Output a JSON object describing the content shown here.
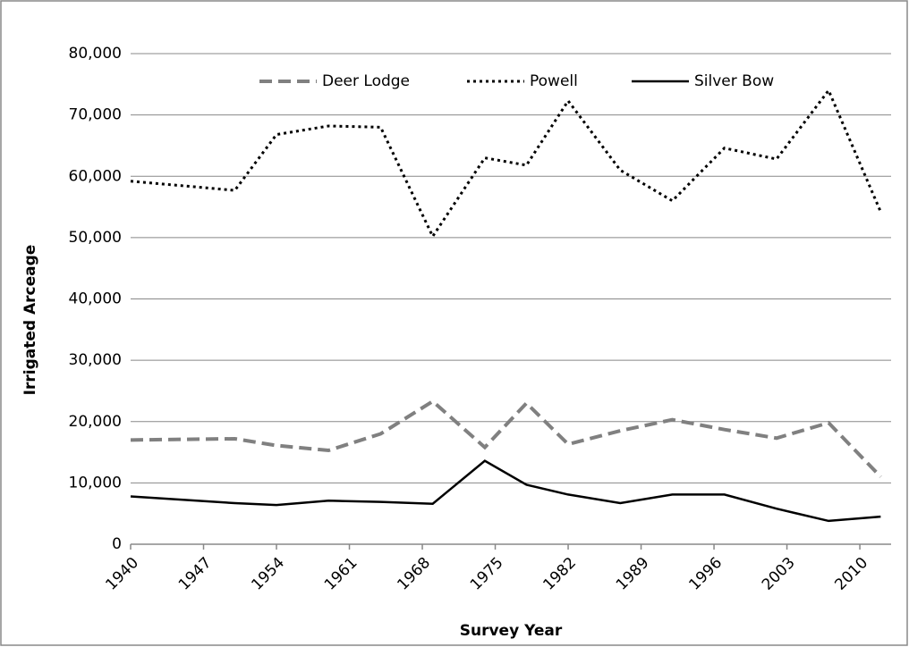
{
  "chart_data": {
    "type": "line",
    "x_label": "Survey Year",
    "y_label": "Irrigated Arceage",
    "x": [
      1940,
      1950,
      1954,
      1959,
      1964,
      1969,
      1974,
      1978,
      1982,
      1987,
      1992,
      1997,
      2002,
      2007,
      2012
    ],
    "series": [
      {
        "name": "Deer Lodge",
        "color": "#808080",
        "style": "dashed",
        "values": [
          17000,
          17200,
          16100,
          15300,
          18000,
          23300,
          15800,
          23000,
          16300,
          18500,
          20300,
          18700,
          17300,
          19800,
          11000
        ]
      },
      {
        "name": "Powell",
        "color": "#000000",
        "style": "dotted",
        "values": [
          59200,
          57700,
          66800,
          68200,
          68000,
          50200,
          63000,
          61800,
          72300,
          61000,
          56000,
          64600,
          62800,
          74000,
          54200
        ]
      },
      {
        "name": "Silver Bow",
        "color": "#000000",
        "style": "solid",
        "values": [
          7800,
          6700,
          6400,
          7100,
          6900,
          6600,
          13600,
          9700,
          8100,
          6700,
          8100,
          8100,
          5800,
          3800,
          4500
        ]
      }
    ],
    "xlim": [
      1940,
      2013
    ],
    "xticks": [
      1940,
      1947,
      1954,
      1961,
      1968,
      1975,
      1982,
      1989,
      1996,
      2003,
      2010
    ],
    "ylim": [
      0,
      80000
    ],
    "yticks": [
      0,
      {
        "value": 10000,
        "label": "10,000"
      },
      {
        "value": 20000,
        "label": "20,000"
      },
      {
        "value": 30000,
        "label": "30,000"
      },
      {
        "value": 40000,
        "label": "40,000"
      },
      {
        "value": 50000,
        "label": "50,000"
      },
      {
        "value": 60000,
        "label": "60,000"
      },
      {
        "value": 70000,
        "label": "70,000"
      },
      {
        "value": 80000,
        "label": "80,000"
      }
    ],
    "grid": true,
    "legend": "top"
  }
}
